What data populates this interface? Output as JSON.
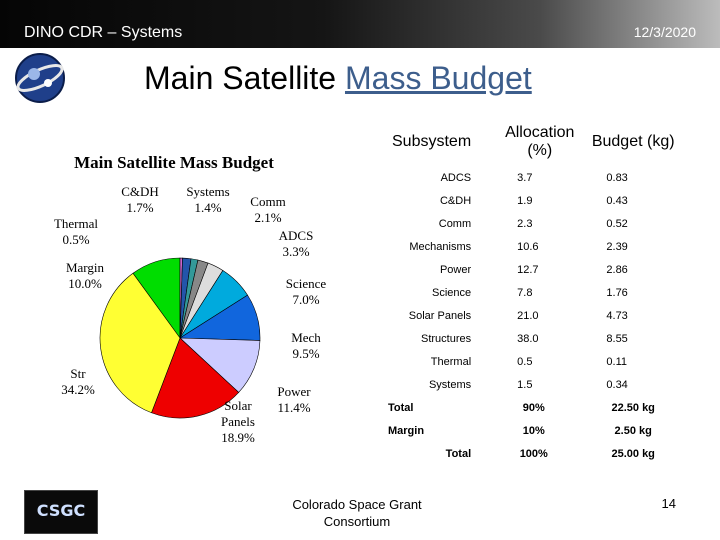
{
  "header": {
    "left": "DINO CDR – Systems",
    "date": "12/3/2020"
  },
  "title": {
    "main": "Main Satellite ",
    "link": "Mass Budget"
  },
  "chart_data": {
    "type": "pie",
    "title": "Main Satellite Mass Budget",
    "slices": [
      {
        "name": "Margin",
        "line1": "Margin",
        "line2": "10.0%",
        "value": 10.0,
        "color": "#00dd00"
      },
      {
        "name": "Thermal",
        "line1": "Thermal",
        "line2": "0.5%",
        "value": 0.5,
        "color": "#cc66cc"
      },
      {
        "name": "C&DH",
        "line1": "C&DH",
        "line2": "1.7%",
        "value": 1.7,
        "color": "#2255aa"
      },
      {
        "name": "Systems",
        "line1": "Systems",
        "line2": "1.4%",
        "value": 1.4,
        "color": "#339999"
      },
      {
        "name": "Comm",
        "line1": "Comm",
        "line2": "2.1%",
        "value": 2.1,
        "color": "#888888"
      },
      {
        "name": "ADCS",
        "line1": "ADCS",
        "line2": "3.3%",
        "value": 3.3,
        "color": "#dddddd"
      },
      {
        "name": "Science",
        "line1": "Science",
        "line2": "7.0%",
        "value": 7.0,
        "color": "#00aadd"
      },
      {
        "name": "Mech",
        "line1": "Mech",
        "line2": "9.5%",
        "value": 9.5,
        "color": "#1166dd"
      },
      {
        "name": "Power",
        "line1": "Power",
        "line2": "11.4%",
        "value": 11.4,
        "color": "#ccccff"
      },
      {
        "name": "Solar Panels",
        "line1": "Solar",
        "line1b": "Panels",
        "line2": "18.9%",
        "value": 18.9,
        "color": "#ee0000"
      },
      {
        "name": "Str",
        "line1": "Str",
        "line2": "34.2%",
        "value": 34.2,
        "color": "#ffff33"
      }
    ]
  },
  "table": {
    "headers": {
      "subsystem": "Subsystem",
      "allocation": "Allocation (%)",
      "budget": "Budget (kg)"
    },
    "rows": [
      {
        "name": "ADCS",
        "alloc": "3.7",
        "budget": "0.83"
      },
      {
        "name": "C&DH",
        "alloc": "1.9",
        "budget": "0.43"
      },
      {
        "name": "Comm",
        "alloc": "2.3",
        "budget": "0.52"
      },
      {
        "name": "Mechanisms",
        "alloc": "10.6",
        "budget": "2.39"
      },
      {
        "name": "Power",
        "alloc": "12.7",
        "budget": "2.86"
      },
      {
        "name": "Science",
        "alloc": "7.8",
        "budget": "1.76"
      },
      {
        "name": "Solar Panels",
        "alloc": "21.0",
        "budget": "4.73"
      },
      {
        "name": "Structures",
        "alloc": "38.0",
        "budget": "8.55"
      },
      {
        "name": "Thermal",
        "alloc": "0.5",
        "budget": "0.11"
      },
      {
        "name": "Systems",
        "alloc": "1.5",
        "budget": "0.34"
      }
    ],
    "totals": [
      {
        "label": "Total",
        "alloc": "90%",
        "budget": "22.50 kg"
      },
      {
        "label": "Margin",
        "alloc": "10%",
        "budget": "2.50 kg"
      },
      {
        "label": "Total",
        "alloc": "100%",
        "budget": "25.00 kg"
      }
    ]
  },
  "footer": {
    "line1": "Colorado Space Grant",
    "line2": "Consortium",
    "logo_text": "CSGC",
    "page": "14"
  }
}
